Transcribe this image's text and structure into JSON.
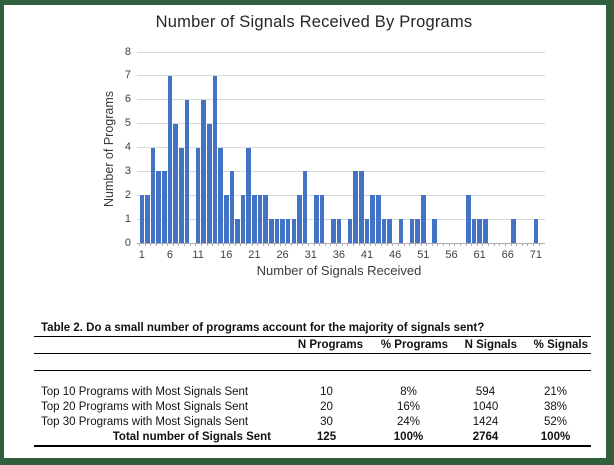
{
  "frame": {
    "border_color": "#2F5F3D"
  },
  "chart_data": {
    "type": "bar",
    "title": "Number of Signals Received By Programs",
    "xlabel": "Number of Signals Received",
    "ylabel": "Number of Programs",
    "x_range": [
      1,
      71
    ],
    "values": [
      2,
      2,
      4,
      3,
      3,
      7,
      5,
      4,
      6,
      0,
      4,
      6,
      5,
      7,
      4,
      2,
      3,
      1,
      2,
      4,
      2,
      2,
      2,
      1,
      1,
      1,
      1,
      1,
      2,
      3,
      0,
      2,
      2,
      0,
      1,
      1,
      0,
      1,
      3,
      3,
      1,
      2,
      2,
      1,
      1,
      0,
      1,
      0,
      1,
      1,
      2,
      0,
      1,
      0,
      0,
      0,
      0,
      0,
      2,
      1,
      1,
      1,
      0,
      0,
      0,
      0,
      1,
      0,
      0,
      0,
      1
    ],
    "ylim": [
      0,
      8
    ],
    "y_ticks": [
      0,
      1,
      2,
      3,
      4,
      5,
      6,
      7,
      8
    ],
    "x_tick_labels": [
      1,
      6,
      11,
      16,
      21,
      26,
      31,
      36,
      41,
      46,
      51,
      56,
      61,
      66,
      71
    ],
    "grid": true,
    "legend": "none",
    "bar_color": "#4472C4",
    "gridline_color": "#D9D9D9",
    "axis_color": "#ADADAD"
  },
  "table": {
    "caption": "Table 2. Do a small number of programs account for the majority of signals sent?",
    "columns": [
      "",
      "N Programs",
      "% Programs",
      "N Signals",
      "% Signals"
    ],
    "rows": [
      {
        "label": "Top 10 Programs with Most Signals Sent",
        "values": [
          "10",
          "8%",
          "594",
          "21%"
        ],
        "bold": false
      },
      {
        "label": "Top 20 Programs with Most Signals Sent",
        "values": [
          "20",
          "16%",
          "1040",
          "38%"
        ],
        "bold": false
      },
      {
        "label": "Top 30 Programs with Most Signals Sent",
        "values": [
          "30",
          "24%",
          "1424",
          "52%"
        ],
        "bold": false
      },
      {
        "label": "Total number of Signals Sent",
        "values": [
          "125",
          "100%",
          "2764",
          "100%"
        ],
        "bold": true
      }
    ]
  }
}
